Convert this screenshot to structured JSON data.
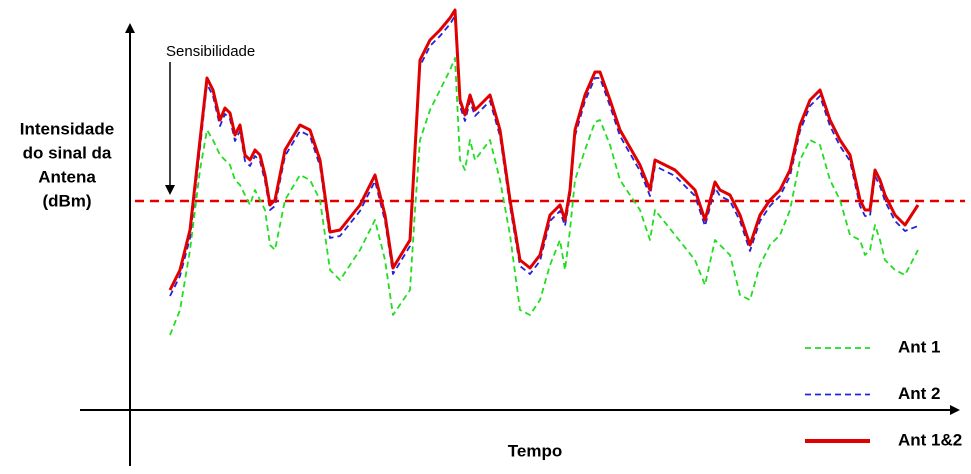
{
  "chart_data": {
    "type": "line",
    "y_label_lines": [
      "Intensidade",
      "do sinal da",
      "Antena",
      "(dBm)"
    ],
    "x_label": "Tempo",
    "threshold": {
      "value": 209,
      "label": "Sensibilidade",
      "color": "#e00000"
    },
    "xlim": [
      0,
      750
    ],
    "ylim": [
      0,
      400
    ],
    "legend": "bottom-right",
    "x": [
      0,
      10,
      20,
      30,
      37,
      43,
      50,
      55,
      60,
      65,
      70,
      75,
      80,
      85,
      90,
      95,
      100,
      105,
      115,
      130,
      140,
      150,
      160,
      170,
      190,
      205,
      215,
      223,
      240,
      245,
      250,
      260,
      270,
      280,
      285,
      290,
      295,
      300,
      305,
      320,
      330,
      340,
      350,
      360,
      370,
      380,
      390,
      395,
      400,
      405,
      415,
      425,
      430,
      440,
      450,
      470,
      480,
      485,
      505,
      525,
      535,
      545,
      550,
      560,
      570,
      580,
      590,
      600,
      610,
      620,
      630,
      640,
      650,
      660,
      670,
      680,
      690,
      695,
      700,
      705,
      710,
      715,
      725,
      735,
      748
    ],
    "series": [
      {
        "name": "Ant 1",
        "color": "#22dd22",
        "dash": true,
        "values": [
          75,
          100,
          160,
          240,
          280,
          270,
          255,
          250,
          245,
          230,
          225,
          215,
          205,
          220,
          210,
          200,
          165,
          160,
          210,
          235,
          230,
          210,
          140,
          130,
          160,
          190,
          150,
          95,
          120,
          200,
          270,
          300,
          320,
          340,
          352,
          250,
          240,
          270,
          250,
          270,
          230,
          175,
          100,
          95,
          110,
          145,
          170,
          140,
          180,
          230,
          260,
          288,
          290,
          265,
          230,
          200,
          170,
          200,
          175,
          150,
          125,
          170,
          165,
          155,
          115,
          110,
          145,
          165,
          175,
          200,
          250,
          270,
          265,
          230,
          210,
          175,
          170,
          155,
          160,
          185,
          170,
          150,
          140,
          135,
          160
        ]
      },
      {
        "name": "Ant 2",
        "color": "#2222dd",
        "dash": true,
        "values": [
          114,
          134,
          172,
          262,
          326,
          314,
          284,
          296,
          291,
          269,
          279,
          249,
          244,
          254,
          249,
          229,
          200,
          204,
          254,
          279,
          274,
          244,
          172,
          174,
          199,
          229,
          189,
          136,
          164,
          254,
          344,
          364,
          374,
          386,
          394,
          304,
          289,
          309,
          294,
          309,
          274,
          204,
          144,
          136,
          149,
          189,
          199,
          184,
          214,
          274,
          309,
          332,
          332,
          304,
          274,
          239,
          214,
          244,
          234,
          214,
          184,
          222,
          214,
          209,
          189,
          159,
          189,
          204,
          214,
          234,
          279,
          304,
          314,
          284,
          264,
          249,
          204,
          194,
          194,
          234,
          224,
          209,
          189,
          179,
          184
        ]
      },
      {
        "name": "Ant 1&2",
        "color": "#e00000",
        "dash": false,
        "values": [
          120,
          140,
          180,
          270,
          332,
          320,
          290,
          302,
          297,
          275,
          285,
          255,
          250,
          260,
          255,
          235,
          205,
          210,
          260,
          285,
          280,
          250,
          178,
          180,
          205,
          235,
          195,
          142,
          170,
          260,
          350,
          370,
          380,
          392,
          400,
          310,
          295,
          315,
          300,
          315,
          280,
          210,
          150,
          142,
          155,
          195,
          205,
          190,
          220,
          280,
          315,
          338,
          338,
          310,
          280,
          245,
          220,
          250,
          240,
          220,
          190,
          228,
          220,
          215,
          195,
          165,
          195,
          210,
          220,
          240,
          285,
          310,
          320,
          290,
          270,
          255,
          210,
          200,
          200,
          240,
          230,
          215,
          195,
          185,
          205
        ]
      }
    ]
  }
}
